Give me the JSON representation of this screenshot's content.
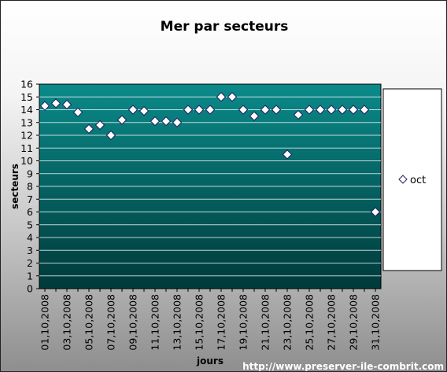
{
  "chart_data": {
    "type": "scatter",
    "title": "Mer par secteurs",
    "xlabel": "jours",
    "ylabel": "secteurs",
    "ylim": [
      0,
      16
    ],
    "yticks": [
      0,
      1,
      2,
      3,
      4,
      5,
      6,
      7,
      8,
      9,
      10,
      11,
      12,
      13,
      14,
      15,
      16
    ],
    "grid": true,
    "legend": "right",
    "x_tick_labels": [
      "01,10,2008",
      "03,10,2008",
      "05,10,2008",
      "07,10,2008",
      "09,10,2008",
      "11,10,2008",
      "13,10,2008",
      "15,10,2008",
      "17,10,2008",
      "19,10,2008",
      "21,10,2008",
      "23,10,2008",
      "25,10,2008",
      "27,10,2008",
      "29,10,2008",
      "31,10,2008"
    ],
    "x": [
      "01,10,2008",
      "02,10,2008",
      "03,10,2008",
      "04,10,2008",
      "05,10,2008",
      "06,10,2008",
      "07,10,2008",
      "08,10,2008",
      "09,10,2008",
      "10,10,2008",
      "11,10,2008",
      "12,10,2008",
      "13,10,2008",
      "14,10,2008",
      "15,10,2008",
      "16,10,2008",
      "17,10,2008",
      "18,10,2008",
      "19,10,2008",
      "20,10,2008",
      "21,10,2008",
      "22,10,2008",
      "23,10,2008",
      "24,10,2008",
      "25,10,2008",
      "26,10,2008",
      "27,10,2008",
      "28,10,2008",
      "29,10,2008",
      "30,10,2008",
      "31,10,2008"
    ],
    "series": [
      {
        "name": "oct",
        "marker": "diamond",
        "values": [
          14.3,
          14.5,
          14.4,
          13.8,
          12.5,
          12.8,
          12.0,
          13.2,
          14.0,
          13.9,
          13.1,
          13.1,
          13.0,
          14.0,
          14.0,
          14.0,
          15.0,
          15.0,
          14.0,
          13.5,
          14.0,
          14.0,
          10.5,
          13.6,
          14.0,
          14.0,
          14.0,
          14.0,
          14.0,
          14.0,
          6.0
        ]
      }
    ]
  },
  "colors": {
    "plot_top": "#0b8a8a",
    "plot_bottom": "#003a3a",
    "gridline": "#ffffff",
    "marker_fill": "#ffffff",
    "marker_stroke": "#202060"
  },
  "footer": {
    "credit": "http://www.preserver-ile-combrit.com"
  }
}
